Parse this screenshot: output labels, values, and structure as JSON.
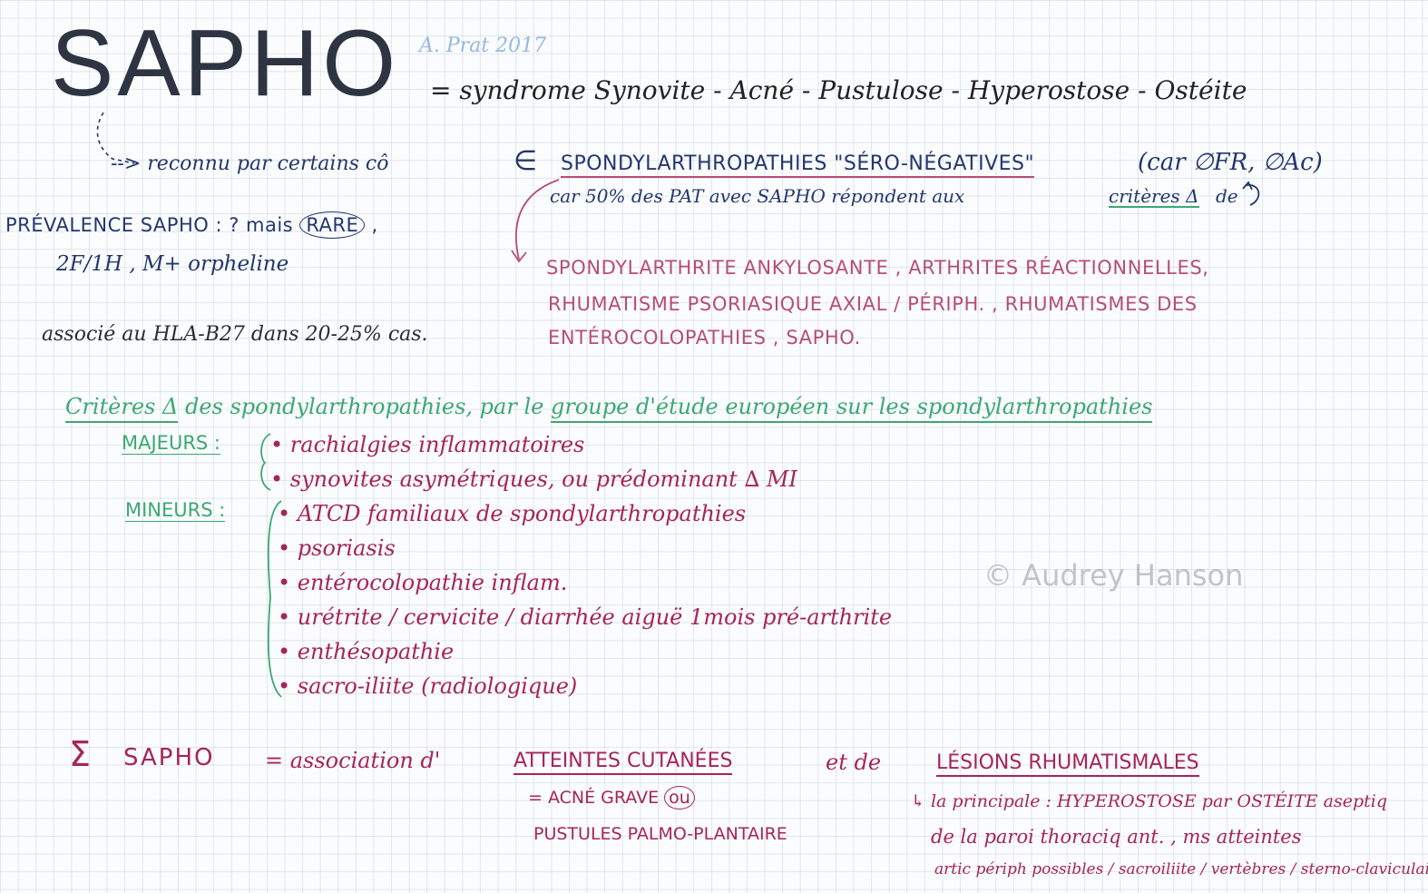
{
  "header": {
    "title": "SAPHO",
    "author_note": "A. Prat 2017",
    "definition": "= syndrome Synovite - Acné - Pustulose - Hyperostose - Ostéite"
  },
  "classification": {
    "prefix": "--> reconnu par certains cô",
    "symbol": "∈",
    "group": "SPONDYLARTHROPATHIES \"SÉRO-NÉGATIVES\"",
    "reason": "(car ∅FR, ∅Ac)",
    "line2_prefix": "car 50% des PAT avec SAPHO répondent aux",
    "line2_criteria": "critères Δ",
    "line2_suffix": "de"
  },
  "prevalence": {
    "line1_prefix": "PRÉVALENCE SAPHO : ? mais",
    "rare": "RARE",
    "line1_suffix": ",",
    "line2": "2F/1H , M+ orpheline",
    "hla": "associé au HLA-B27 dans 20-25% cas."
  },
  "spa_list": {
    "line1": "SPONDYLARTHRITE ANKYLOSANTE , ARTHRITES RÉACTIONNELLES,",
    "line2": "RHUMATISME PSORIASIQUE AXIAL / PÉRIPH. ,   RHUMATISMES DES",
    "line3": "ENTÉROCOLOPATHIES , SAPHO."
  },
  "criteria": {
    "title_prefix": "Critères Δ",
    "title_mid": "des spondylarthropathies, par le",
    "title_group": "groupe d'étude européen sur les spondylarthropathies",
    "major_label": "MAJEURS :",
    "major_items": [
      "rachialgies inflammatoires",
      "synovites asymétriques, ou prédominant ∆ MI"
    ],
    "minor_label": "MINEURS :",
    "minor_items": [
      "ATCD familiaux de spondylarthropathies",
      "psoriasis",
      "entérocolopathie inflam.",
      "urétrite / cervicite / diarrhée aiguë 1mois pré-arthrite",
      "enthésopathie",
      "sacro-iliite (radiologique)"
    ]
  },
  "watermark": "© Audrey Hanson",
  "summary": {
    "sigma": "Σ",
    "label": "SAPHO",
    "assoc": "= association d'",
    "cutaneous_title": "ATTEINTES CUTANÉES",
    "and": "et de",
    "rheum_title": "LÉSIONS RHUMATISMALES",
    "cutaneous_line1_prefix": "= ACNÉ GRAVE",
    "cutaneous_or": "ou",
    "cutaneous_line2": "PUSTULES PALMO-PLANTAIRE",
    "rheum_line1": "↳ la principale : HYPEROSTOSE par OSTÉITE aseptiq",
    "rheum_line2": "de la paroi thoraciq ant. , ms atteintes",
    "rheum_line3": "artic périph possibles / sacroiliite / vertèbres / sterno-claviculaires"
  }
}
